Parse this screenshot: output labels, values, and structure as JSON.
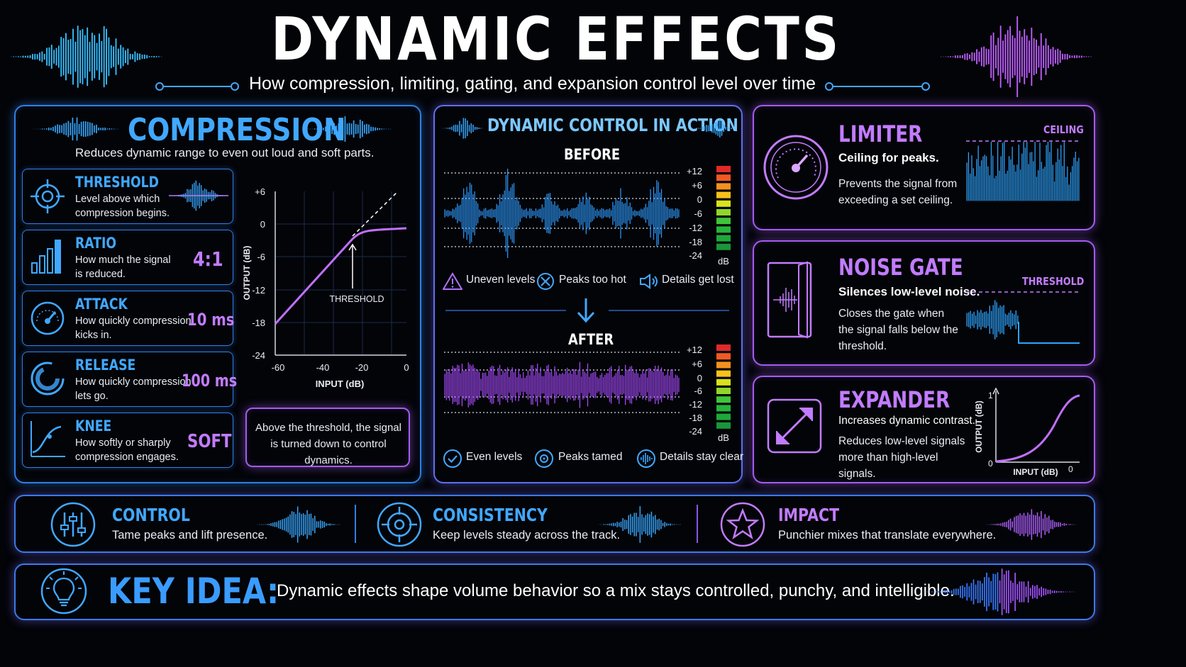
{
  "header": {
    "title": "DYNAMIC EFFECTS",
    "subtitle": "How compression, limiting, gating, and expansion control level over time"
  },
  "compression": {
    "title": "COMPRESSION",
    "description": "Reduces dynamic range to even out loud and soft parts.",
    "params": [
      {
        "name": "THRESHOLD",
        "desc1": "Level above which",
        "desc2": "compression begins.",
        "value": "",
        "icon": "crosshair-icon"
      },
      {
        "name": "RATIO",
        "desc1": "How much the signal",
        "desc2": "is reduced.",
        "value": "4:1",
        "icon": "bars-icon"
      },
      {
        "name": "ATTACK",
        "desc1": "How quickly compression",
        "desc2": "kicks in.",
        "value": "10 ms",
        "icon": "gauge-icon"
      },
      {
        "name": "RELEASE",
        "desc1": "How quickly compression",
        "desc2": "lets go.",
        "value": "100 ms",
        "icon": "ring-icon"
      },
      {
        "name": "KNEE",
        "desc1": "How softly or sharply",
        "desc2": "compression engages.",
        "value": "SOFT",
        "icon": "curve-icon"
      }
    ],
    "graph": {
      "ylabel": "OUTPUT (dB)",
      "xlabel": "INPUT (dB)",
      "yticks": [
        "+6",
        "0",
        "-6",
        "-12",
        "-18",
        "-24"
      ],
      "xticks": [
        "-60",
        "-40",
        "-20",
        "0"
      ],
      "threshold_label": "THRESHOLD"
    },
    "note": "Above the threshold, the signal is turned down to control dynamics."
  },
  "action": {
    "title": "DYNAMIC CONTROL IN ACTION",
    "before_label": "BEFORE",
    "after_label": "AFTER",
    "meter_ticks": [
      "+12",
      "+6",
      "0",
      "-6",
      "-12",
      "-18",
      "-24"
    ],
    "meter_unit": "dB",
    "before_items": [
      "Uneven levels",
      "Peaks too hot",
      "Details get lost"
    ],
    "after_items": [
      "Even levels",
      "Peaks tamed",
      "Details stay clear"
    ]
  },
  "limiter": {
    "title": "LIMITER",
    "subtitle": "Ceiling for peaks.",
    "desc": "Prevents the signal from exceeding a set ceiling.",
    "graph_label": "CEILING"
  },
  "gate": {
    "title": "NOISE GATE",
    "subtitle": "Silences low-level noise.",
    "desc": "Closes the gate when the signal falls below the threshold.",
    "graph_label": "THRESHOLD"
  },
  "expander": {
    "title": "EXPANDER",
    "subtitle": "Increases dynamic contrast.",
    "desc": "Reduces low-level signals more than high-level signals.",
    "ylabel": "OUTPUT (dB)",
    "xlabel": "INPUT (dB)",
    "y_top": "1",
    "y_bottom": "0",
    "x_right": "0"
  },
  "benefits": [
    {
      "title": "CONTROL",
      "desc": "Tame peaks and lift presence.",
      "icon": "sliders-icon"
    },
    {
      "title": "CONSISTENCY",
      "desc": "Keep levels steady across the track.",
      "icon": "target-icon"
    },
    {
      "title": "IMPACT",
      "desc": "Punchier mixes that translate everywhere.",
      "icon": "star-icon"
    }
  ],
  "key_idea": {
    "label": "KEY IDEA:",
    "text": "Dynamic effects shape volume behavior so a mix stays controlled, punchy, and intelligible."
  },
  "colors": {
    "background": "#030408",
    "blue_accent": "#41a8ff",
    "purple_accent": "#c27cff",
    "panel_blue": "#2f7fe6",
    "panel_purple": "#a45cf0"
  }
}
